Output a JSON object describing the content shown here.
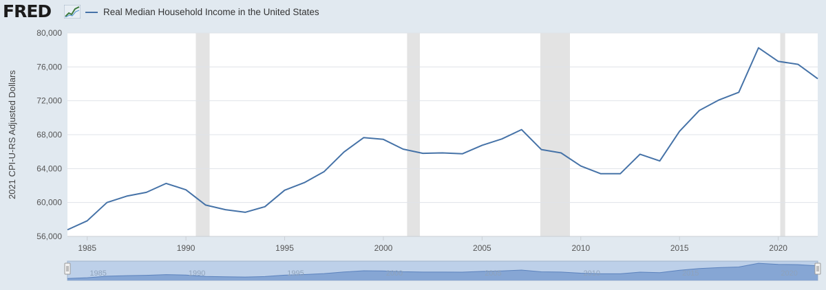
{
  "brand": {
    "name": "FRED",
    "icon": "trend-chart-icon"
  },
  "chart_data": {
    "type": "line",
    "title": "Real Median Household Income in the United States",
    "ylabel": "2021 CPI-U-RS Adjusted Dollars",
    "xlabel": "",
    "xlim": [
      1984,
      2022
    ],
    "ylim": [
      56000,
      80000
    ],
    "grid": true,
    "legend": "top-left",
    "yticks": [
      56000,
      60000,
      64000,
      68000,
      72000,
      76000,
      80000
    ],
    "ytick_labels": [
      "56,000",
      "60,000",
      "64,000",
      "68,000",
      "72,000",
      "76,000",
      "80,000"
    ],
    "xticks": [
      1985,
      1990,
      1995,
      2000,
      2005,
      2010,
      2015,
      2020
    ],
    "xtick_labels": [
      "1985",
      "1990",
      "1995",
      "2000",
      "2005",
      "2010",
      "2015",
      "2020"
    ],
    "recessions": [
      [
        1990.5,
        1991.2
      ],
      [
        2001.2,
        2001.85
      ],
      [
        2007.95,
        2009.45
      ],
      [
        2020.1,
        2020.35
      ]
    ],
    "series": [
      {
        "name": "Real Median Household Income in the United States",
        "color": "#4572a7",
        "x": [
          1984,
          1985,
          1986,
          1987,
          1988,
          1989,
          1990,
          1991,
          1992,
          1993,
          1994,
          1995,
          1996,
          1997,
          1998,
          1999,
          2000,
          2001,
          2002,
          2003,
          2004,
          2005,
          2006,
          2007,
          2008,
          2009,
          2010,
          2011,
          2012,
          2013,
          2014,
          2015,
          2016,
          2017,
          2018,
          2019,
          2020,
          2021,
          2022
        ],
        "values": [
          56780,
          57840,
          60000,
          60750,
          61200,
          62250,
          61500,
          59700,
          59150,
          58850,
          59500,
          61450,
          62350,
          63650,
          65950,
          67650,
          67450,
          66300,
          65800,
          65850,
          65750,
          66750,
          67500,
          68600,
          66250,
          65850,
          64300,
          63400,
          63400,
          65700,
          64900,
          68400,
          70850,
          72100,
          73000,
          78250,
          76650,
          76300,
          74600
        ]
      }
    ],
    "navigator": {
      "xtick_labels": [
        "1985",
        "1990",
        "1995",
        "2000",
        "2005",
        "2010",
        "2015",
        "2020"
      ]
    }
  }
}
